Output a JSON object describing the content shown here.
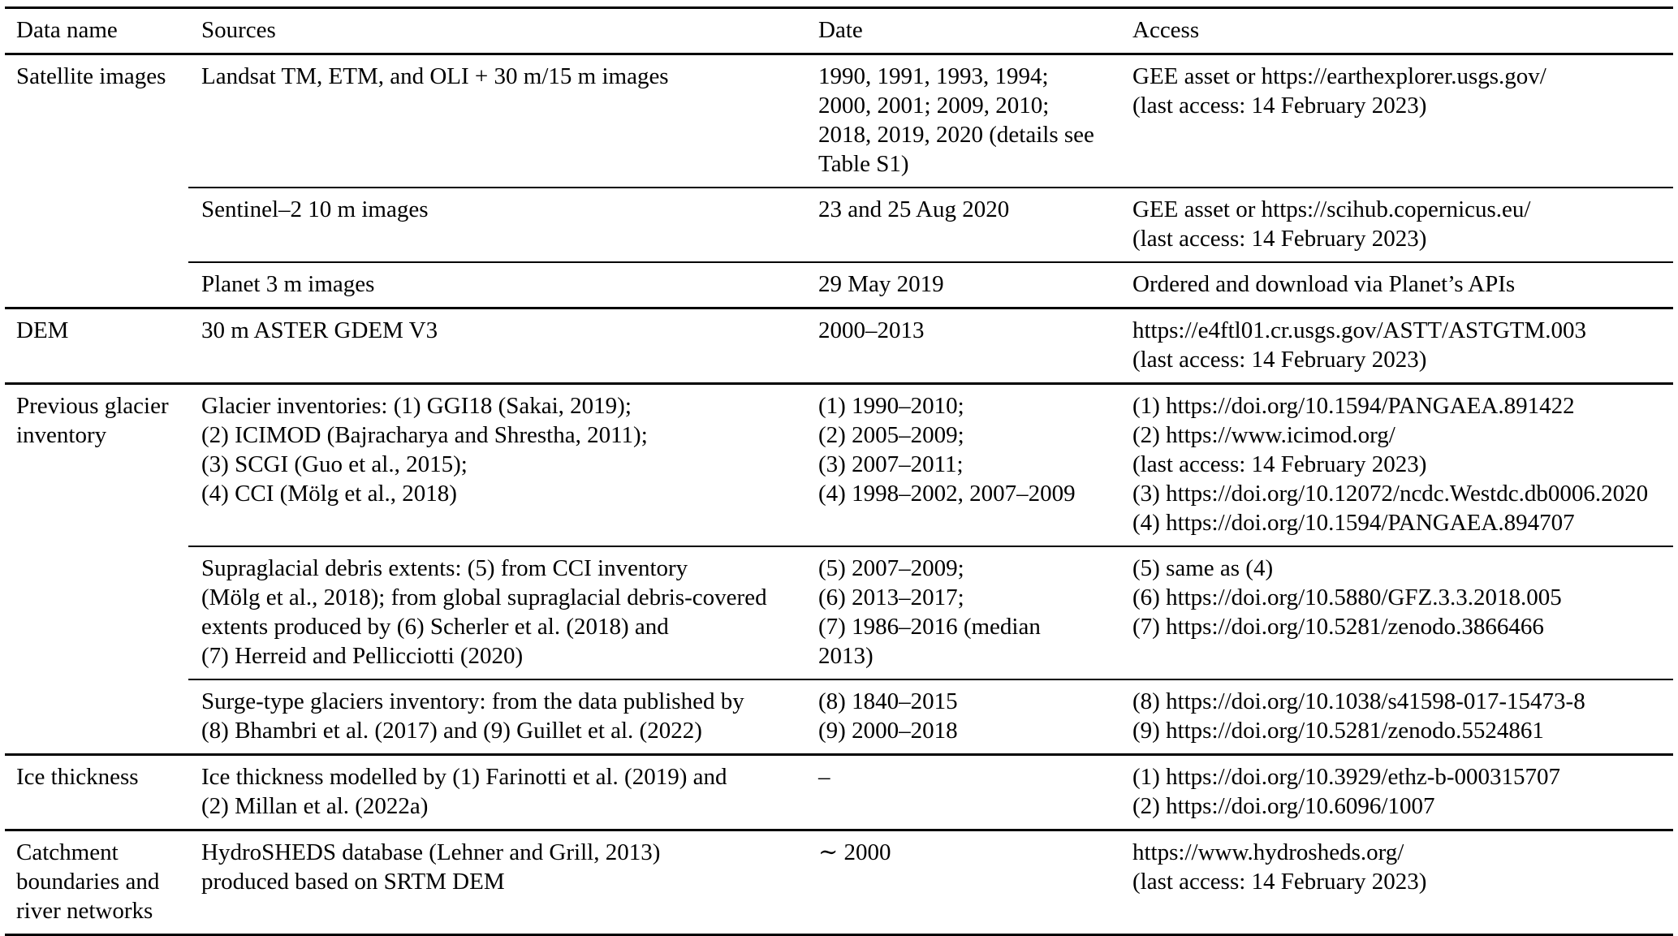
{
  "table": {
    "columns": [
      "Data name",
      "Sources",
      "Date",
      "Access"
    ],
    "groups": [
      {
        "data_name": "Satellite images",
        "rows": [
          {
            "sources": "Landsat TM, ETM, and OLI + 30 m/15 m images",
            "date": "1990, 1991, 1993, 1994;\n2000, 2001; 2009, 2010;\n2018, 2019, 2020 (details see\nTable S1)",
            "access": "GEE asset or https://earthexplorer.usgs.gov/\n(last access: 14 February 2023)"
          },
          {
            "sources": "Sentinel–2 10 m images",
            "date": "23 and 25 Aug 2020",
            "access": "GEE asset or https://scihub.copernicus.eu/\n(last access: 14 February 2023)"
          },
          {
            "sources": "Planet 3 m images",
            "date": "29 May 2019",
            "access": "Ordered and download via Planet’s APIs"
          }
        ]
      },
      {
        "data_name": "DEM",
        "rows": [
          {
            "sources": "30 m ASTER GDEM V3",
            "date": "2000–2013",
            "access": "https://e4ftl01.cr.usgs.gov/ASTT/ASTGTM.003\n(last access: 14 February 2023)"
          }
        ]
      },
      {
        "data_name": "Previous glacier\ninventory",
        "rows": [
          {
            "sources": "Glacier inventories: (1) GGI18 (Sakai, 2019);\n(2) ICIMOD (Bajracharya and Shrestha, 2011);\n(3) SCGI (Guo et al., 2015);\n(4) CCI (Mölg et al., 2018)",
            "date": "(1) 1990–2010;\n(2) 2005–2009;\n(3) 2007–2011;\n(4) 1998–2002, 2007–2009",
            "access": "(1) https://doi.org/10.1594/PANGAEA.891422\n(2) https://www.icimod.org/\n(last access: 14 February 2023)\n(3) https://doi.org/10.12072/ncdc.Westdc.db0006.2020\n(4) https://doi.org/10.1594/PANGAEA.894707"
          },
          {
            "sources": "Supraglacial debris extents: (5) from CCI inventory\n(Mölg et al., 2018); from global supraglacial debris-covered\nextents produced by (6) Scherler et al. (2018) and\n(7) Herreid and Pellicciotti (2020)",
            "date": "(5) 2007–2009;\n(6) 2013–2017;\n(7) 1986–2016 (median\n2013)",
            "access": "(5) same as (4)\n(6) https://doi.org/10.5880/GFZ.3.3.2018.005\n(7) https://doi.org/10.5281/zenodo.3866466"
          },
          {
            "sources": "Surge-type glaciers inventory: from the data published by\n(8) Bhambri et al. (2017) and (9) Guillet et al. (2022)",
            "date": "(8) 1840–2015\n(9) 2000–2018",
            "access": "(8) https://doi.org/10.1038/s41598-017-15473-8\n(9) https://doi.org/10.5281/zenodo.5524861"
          }
        ]
      },
      {
        "data_name": "Ice thickness",
        "rows": [
          {
            "sources": "Ice thickness modelled by (1) Farinotti et al. (2019) and\n(2) Millan et al. (2022a)",
            "date": "–",
            "access": "(1) https://doi.org/10.3929/ethz-b-000315707\n(2) https://doi.org/10.6096/1007"
          }
        ]
      },
      {
        "data_name": "Catchment\nboundaries and\nriver networks",
        "rows": [
          {
            "sources": "HydroSHEDS database (Lehner and Grill, 2013)\nproduced based on SRTM DEM",
            "date": "∼ 2000",
            "access": "https://www.hydrosheds.org/\n(last access: 14 February 2023)"
          }
        ]
      }
    ]
  }
}
